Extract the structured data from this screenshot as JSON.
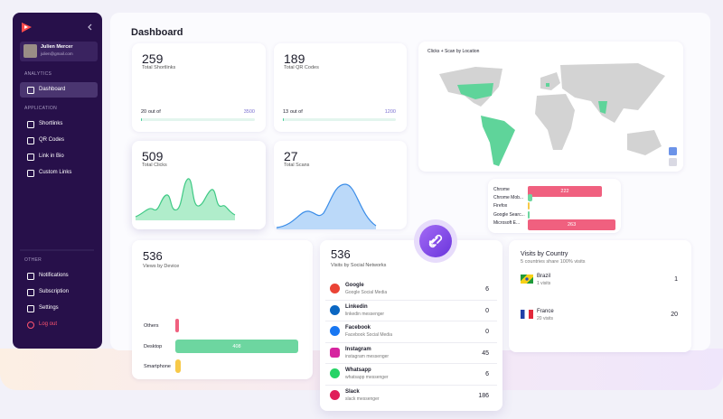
{
  "sidebar": {
    "user": {
      "name": "Julien Mercer",
      "email": "julien@gmail.com"
    },
    "sections": [
      {
        "title": "ANALYTICS",
        "items": [
          "Dashboard"
        ]
      },
      {
        "title": "APPLICATION",
        "items": [
          "Shortlinks",
          "QR Codes",
          "Link in Bio",
          "Custom Links"
        ]
      },
      {
        "title": "OTHER",
        "items": [
          "Notifications",
          "Subscription",
          "Settings",
          "Log out"
        ]
      }
    ]
  },
  "header": {
    "title": "Dashboard"
  },
  "stats": [
    {
      "value": 259,
      "label": "Total Shortlinks",
      "progress": {
        "used": 20,
        "text": "out of",
        "max": 3500
      }
    },
    {
      "value": 189,
      "label": "Total QR Codes",
      "progress": {
        "used": 13,
        "text": "out of",
        "max": 1200
      }
    },
    {
      "value": 509,
      "label": "Total Clicks"
    },
    {
      "value": 27,
      "label": "Total Scans"
    }
  ],
  "map": {
    "title": "Clicks + Scan by Location"
  },
  "browsers": [
    {
      "name": "Chrome",
      "value": 222
    },
    {
      "name": "Chrome Mob...",
      "value": 13
    },
    {
      "name": "Firefox",
      "value": 5
    },
    {
      "name": "Google Searc...",
      "value": 5
    },
    {
      "name": "Microsoft E...",
      "value": 263
    }
  ],
  "devices": {
    "total": 536,
    "title": "Views by Device",
    "items": [
      {
        "name": "Others",
        "value": 12
      },
      {
        "name": "Desktop",
        "value": 408
      },
      {
        "name": "Smartphone",
        "value": 18
      }
    ]
  },
  "social": {
    "total": 536,
    "title": "Visits by Social Networks",
    "items": [
      {
        "name": "Google",
        "subtitle": "Google Social Media",
        "value": 6
      },
      {
        "name": "Linkedin",
        "subtitle": "linkedin messenger",
        "value": 0
      },
      {
        "name": "Facebook",
        "subtitle": "Facebook Social Media",
        "value": 0
      },
      {
        "name": "Instagram",
        "subtitle": "instagram messenger",
        "value": 45
      },
      {
        "name": "Whatsapp",
        "subtitle": "whatsapp messenger",
        "value": 6
      },
      {
        "name": "Slack",
        "subtitle": "slack messenger",
        "value": 186
      }
    ]
  },
  "countries": {
    "title": "Visits by Country",
    "subtitle": "5 countries share 100% visits",
    "items": [
      {
        "name": "Brazil",
        "visits_label": "1 visits",
        "value": 1
      },
      {
        "name": "France",
        "visits_label": "20 visits",
        "value": 20
      }
    ]
  }
}
